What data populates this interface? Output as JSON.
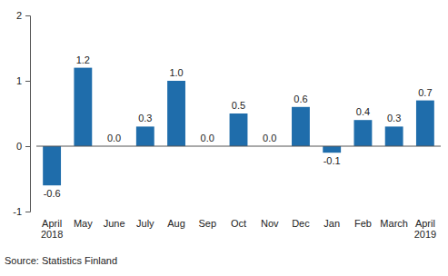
{
  "chart_data": {
    "type": "bar",
    "categories": [
      "April 2018",
      "May",
      "June",
      "July",
      "Aug",
      "Sep",
      "Oct",
      "Nov",
      "Dec",
      "Jan",
      "Feb",
      "March",
      "April 2019"
    ],
    "values": [
      -0.6,
      1.2,
      0.0,
      0.3,
      1.0,
      0.0,
      0.5,
      0.0,
      0.6,
      -0.1,
      0.4,
      0.3,
      0.7
    ],
    "value_labels": [
      "-0.6",
      "1.2",
      "0.0",
      "0.3",
      "1.0",
      "0.0",
      "0.5",
      "0.0",
      "0.6",
      "-0.1",
      "0.4",
      "0.3",
      "0.7"
    ],
    "color": "#1f6dab",
    "ylim": [
      -1,
      2
    ],
    "yticks": [
      -1,
      0,
      1,
      2
    ],
    "grid": false,
    "data_labels": true,
    "annotations": [
      "Source: Statistics Finland"
    ]
  }
}
